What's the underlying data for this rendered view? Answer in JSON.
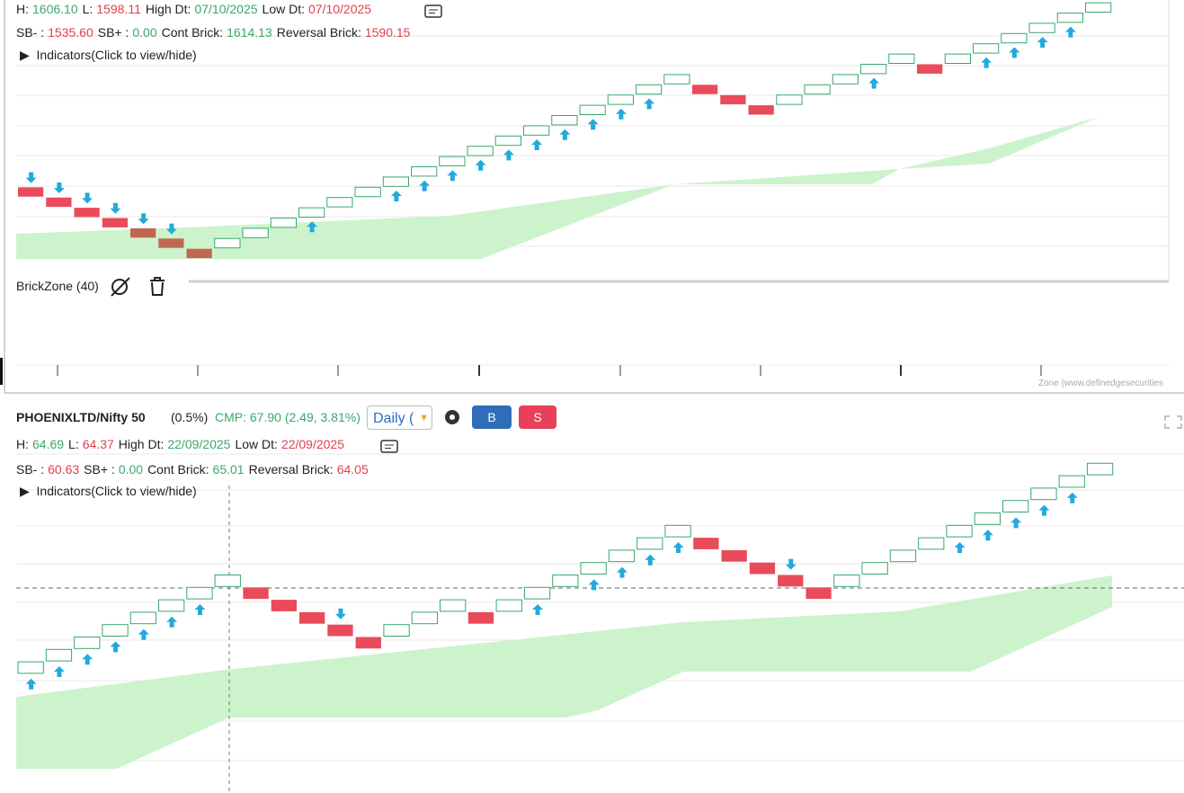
{
  "top_panel": {
    "stats_row1": [
      {
        "label": "H:",
        "value": "1606.10"
      },
      {
        "label": "L:",
        "value": "1598.11"
      },
      {
        "label": "High Dt:",
        "value": "07/10/2025"
      },
      {
        "label": "Low Dt:",
        "value": "07/10/2025"
      }
    ],
    "stats_row2": [
      {
        "label": "SB- :",
        "value": "1535.60"
      },
      {
        "label": "SB+ :",
        "value": "0.00"
      },
      {
        "label": "Cont Brick:",
        "value": "1614.13"
      },
      {
        "label": "Reversal Brick:",
        "value": "1590.15"
      }
    ],
    "indicators": "Indicators(Click to view/hide)",
    "indicator_name": "BrickZone (40)",
    "watermark": "Zone (www.definedgesecurities"
  },
  "bottom_panel": {
    "symbol": "PHOENIXLTD/Nifty 50",
    "brick_size": "(0.5%)",
    "cmp": "CMP: 67.90 (2.49, 3.81%)",
    "timeframe": "Daily (",
    "buy": "B",
    "sell": "S",
    "stats_row1": [
      {
        "label": "H:",
        "value": "64.69"
      },
      {
        "label": "L:",
        "value": "64.37"
      },
      {
        "label": "High Dt:",
        "value": "22/09/2025"
      },
      {
        "label": "Low Dt:",
        "value": "22/09/2025"
      }
    ],
    "stats_row2": [
      {
        "label": "SB- :",
        "value": "60.63"
      },
      {
        "label": "SB+ :",
        "value": "0.00"
      },
      {
        "label": "Cont Brick:",
        "value": "65.01"
      },
      {
        "label": "Reversal Brick:",
        "value": "64.05"
      }
    ],
    "indicators": "Indicators(Click to view/hide)"
  }
}
